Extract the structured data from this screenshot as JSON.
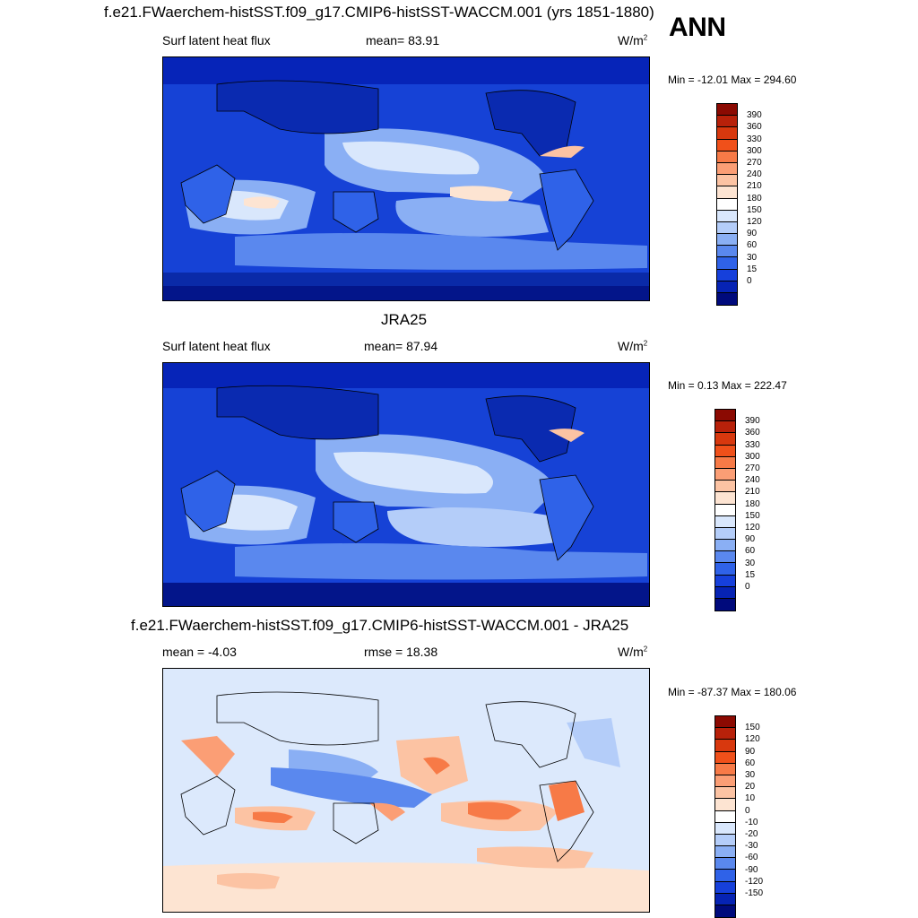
{
  "season_label": "ANN",
  "panels": [
    {
      "title": "f.e21.FWaerchem-histSST.f09_g17.CMIP6-histSST-WACCM.001 (yrs 1851-1880)",
      "left_label": "Surf latent heat flux",
      "center_label": "mean=  83.91",
      "units": "W/m",
      "units_sup": "2",
      "minmax": "Min = -12.01 Max = 294.60",
      "colorbar": {
        "levels": [
          "390",
          "360",
          "330",
          "300",
          "270",
          "240",
          "210",
          "180",
          "150",
          "120",
          "90",
          "60",
          "30",
          "15",
          "0"
        ],
        "colors": [
          "#8b0a02",
          "#b8210a",
          "#d8380e",
          "#f0501a",
          "#f77a47",
          "#fb9e75",
          "#fcc3a3",
          "#fde4d2",
          "#ffffff",
          "#d9e7fc",
          "#b4cdf9",
          "#8aaff4",
          "#5a88ee",
          "#2f62e8",
          "#1640db",
          "#0623b4",
          "#000a7c"
        ]
      }
    },
    {
      "title": "JRA25",
      "left_label": "Surf latent heat flux",
      "center_label": "mean=  87.94",
      "units": "W/m",
      "units_sup": "2",
      "minmax": "Min =   0.13 Max = 222.47",
      "colorbar": {
        "levels": [
          "390",
          "360",
          "330",
          "300",
          "270",
          "240",
          "210",
          "180",
          "150",
          "120",
          "90",
          "60",
          "30",
          "15",
          "0"
        ],
        "colors": [
          "#8b0a02",
          "#b8210a",
          "#d8380e",
          "#f0501a",
          "#f77a47",
          "#fb9e75",
          "#fcc3a3",
          "#fde4d2",
          "#ffffff",
          "#d9e7fc",
          "#b4cdf9",
          "#8aaff4",
          "#5a88ee",
          "#2f62e8",
          "#1640db",
          "#0623b4",
          "#000a7c"
        ]
      }
    },
    {
      "title": "f.e21.FWaerchem-histSST.f09_g17.CMIP6-histSST-WACCM.001 - JRA25",
      "left_label": "mean =  -4.03",
      "center_label": "rmse =  18.38",
      "units": "W/m",
      "units_sup": "2",
      "minmax": "Min = -87.37 Max = 180.06",
      "colorbar": {
        "levels": [
          "150",
          "120",
          "90",
          "60",
          "30",
          "20",
          "10",
          "0",
          "-10",
          "-20",
          "-30",
          "-60",
          "-90",
          "-120",
          "-150"
        ],
        "colors": [
          "#8b0a02",
          "#b8210a",
          "#d8380e",
          "#f0501a",
          "#f77a47",
          "#fb9e75",
          "#fcc3a3",
          "#fde4d2",
          "#ffffff",
          "#d9e7fc",
          "#b4cdf9",
          "#8aaff4",
          "#5a88ee",
          "#2f62e8",
          "#1640db",
          "#0623b4",
          "#000a7c"
        ]
      }
    }
  ]
}
